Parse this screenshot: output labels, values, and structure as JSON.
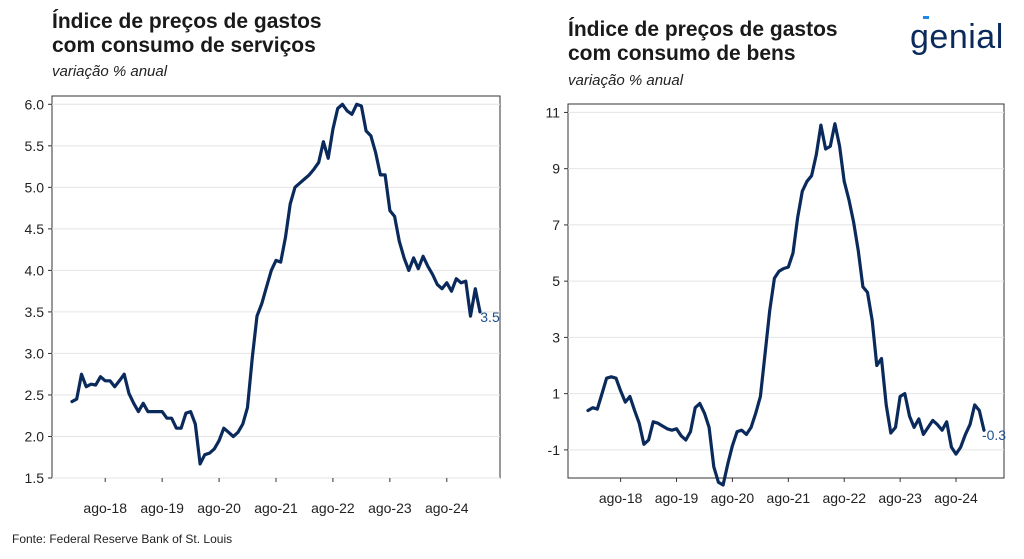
{
  "brand": {
    "logo_text": "genial"
  },
  "source": "Fonte: Federal Reserve Bank of St. Louis",
  "chart_data": [
    {
      "type": "line",
      "title": "Índice de preços de gastos com consumo de serviços",
      "title_lines": [
        "Índice de preços de gastos",
        "com consumo de serviços"
      ],
      "subtitle": "variação % anual",
      "line_color": "#0b2a5c",
      "ylim": [
        1.5,
        6.1
      ],
      "yticks": [
        "1.5",
        "2.0",
        "2.5",
        "3.0",
        "3.5",
        "4.0",
        "4.5",
        "5.0",
        "5.5",
        "6.0"
      ],
      "xticks": [
        "ago-18",
        "ago-19",
        "ago-20",
        "ago-21",
        "ago-22",
        "ago-23",
        "ago-24"
      ],
      "last_label": "3.5",
      "grid": true,
      "x_start": "2018-01",
      "x_end": "2024-12",
      "values": [
        2.42,
        2.45,
        2.75,
        2.6,
        2.63,
        2.62,
        2.72,
        2.67,
        2.67,
        2.6,
        2.67,
        2.75,
        2.52,
        2.4,
        2.3,
        2.4,
        2.3,
        2.3,
        2.3,
        2.3,
        2.22,
        2.22,
        2.1,
        2.1,
        2.28,
        2.3,
        2.15,
        1.67,
        1.78,
        1.8,
        1.85,
        1.95,
        2.1,
        2.05,
        2.0,
        2.05,
        2.15,
        2.35,
        2.95,
        3.45,
        3.6,
        3.8,
        4.0,
        4.12,
        4.1,
        4.4,
        4.8,
        5.0,
        5.05,
        5.1,
        5.15,
        5.22,
        5.3,
        5.55,
        5.35,
        5.7,
        5.95,
        6.0,
        5.92,
        5.88,
        6.0,
        5.98,
        5.68,
        5.62,
        5.42,
        5.15,
        5.15,
        4.72,
        4.65,
        4.35,
        4.15,
        4.0,
        4.15,
        4.02,
        4.17,
        4.05,
        3.95,
        3.83,
        3.78,
        3.85,
        3.75,
        3.9,
        3.85,
        3.87,
        3.45,
        3.78,
        3.5
      ]
    },
    {
      "type": "line",
      "title": "Índice de preços de gastos com consumo de bens",
      "title_lines": [
        "Índice de preços de gastos",
        "com consumo de bens"
      ],
      "subtitle": "variação % anual",
      "line_color": "#0b2a5c",
      "ylim": [
        -2.0,
        11.3
      ],
      "yticks": [
        "-1",
        "1",
        "3",
        "5",
        "7",
        "9",
        "11"
      ],
      "xticks": [
        "ago-18",
        "ago-19",
        "ago-20",
        "ago-21",
        "ago-22",
        "ago-23",
        "ago-24"
      ],
      "last_label": "-0.3",
      "grid": true,
      "x_start": "2018-01",
      "x_end": "2024-12",
      "values": [
        0.4,
        0.5,
        0.45,
        1.0,
        1.55,
        1.6,
        1.55,
        1.1,
        0.7,
        0.9,
        0.4,
        -0.05,
        -0.8,
        -0.65,
        0.0,
        -0.05,
        -0.15,
        -0.25,
        -0.3,
        -0.25,
        -0.5,
        -0.65,
        -0.35,
        0.5,
        0.65,
        0.3,
        -0.2,
        -1.6,
        -2.15,
        -2.25,
        -1.5,
        -0.85,
        -0.35,
        -0.3,
        -0.45,
        -0.2,
        0.3,
        0.9,
        2.4,
        3.95,
        5.1,
        5.35,
        5.45,
        5.5,
        6.0,
        7.25,
        8.2,
        8.55,
        8.75,
        9.5,
        10.55,
        9.7,
        9.8,
        10.6,
        9.8,
        8.55,
        7.9,
        7.1,
        6.1,
        4.8,
        4.6,
        3.6,
        2.0,
        2.25,
        0.6,
        -0.4,
        -0.2,
        0.9,
        1.0,
        0.2,
        -0.2,
        0.1,
        -0.45,
        -0.2,
        0.05,
        -0.1,
        -0.3,
        0.0,
        -0.9,
        -1.15,
        -0.9,
        -0.45,
        -0.1,
        0.6,
        0.4,
        -0.3
      ]
    }
  ]
}
